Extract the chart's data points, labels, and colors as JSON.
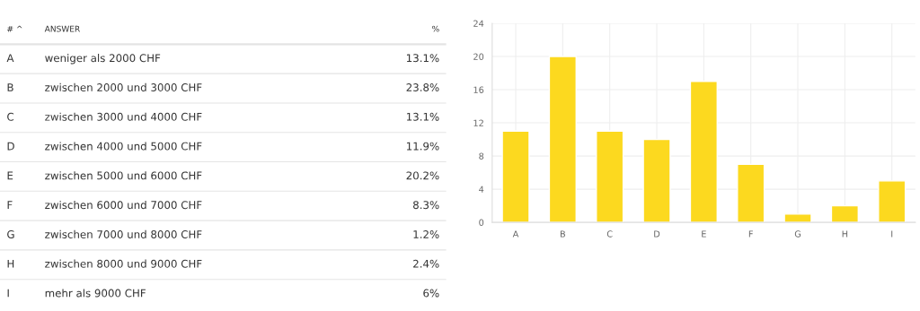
{
  "chart_data": [
    {
      "type": "other",
      "annotations": [
        "# ^",
        "ANSWER",
        "%",
        "A",
        "weniger als 2000 CHF",
        "13.1%",
        "B",
        "zwischen 2000 und 3000 CHF",
        "23.8%",
        "C",
        "zwischen 3000 und 4000 CHF",
        "13.1%",
        "D",
        "zwischen 4000 und 5000 CHF",
        "11.9%",
        "E",
        "zwischen 5000 und 6000 CHF",
        "20.2%",
        "F",
        "zwischen 6000 und 7000 CHF",
        "8.3%",
        "G",
        "zwischen 7000 und 8000 CHF",
        "1.2%",
        "H",
        "zwischen 8000 und 9000 CHF",
        "2.4%",
        "I",
        "mehr als 9000 CHF",
        "6%"
      ]
    },
    {
      "type": "bar",
      "categories": [
        "A",
        "B",
        "C",
        "D",
        "E",
        "F",
        "G",
        "H",
        "I"
      ],
      "values": [
        11,
        20,
        11,
        10,
        17,
        7,
        1,
        2,
        5
      ],
      "color": "#fcd91f",
      "ylim": [
        0,
        24
      ],
      "yticks": [
        0,
        4,
        8,
        12,
        16,
        20,
        24
      ],
      "grid": true
    }
  ]
}
